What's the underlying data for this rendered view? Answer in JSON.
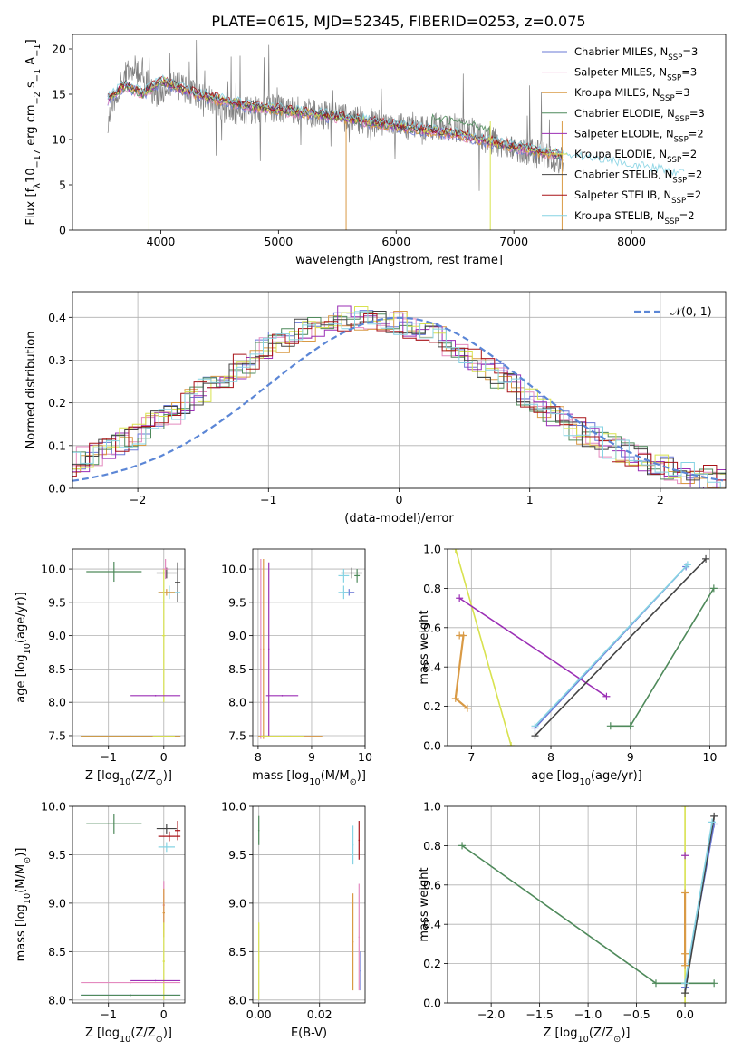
{
  "figure": {
    "title": "PLATE=0615, MJD=52345, FIBERID=0253, z=0.075",
    "legend_entries": [
      {
        "prefix": "Chabrier MILES, N",
        "sub": "SSP",
        "suffix": "=3",
        "color": "#6a78d6"
      },
      {
        "prefix": "Salpeter MILES, N",
        "sub": "SSP",
        "suffix": "=3",
        "color": "#e48abf"
      },
      {
        "prefix": "Kroupa MILES, N",
        "sub": "SSP",
        "suffix": "=3",
        "color": "#d99a45"
      },
      {
        "prefix": "Chabrier ELODIE, N",
        "sub": "SSP",
        "suffix": "=3",
        "color": "#4f8a5b"
      },
      {
        "prefix": "Salpeter ELODIE, N",
        "sub": "SSP",
        "suffix": "=2",
        "color": "#9b2fb5"
      },
      {
        "prefix": "Kroupa ELODIE, N",
        "sub": "SSP",
        "suffix": "=2",
        "color": "#d8e24f"
      },
      {
        "prefix": "Chabrier STELIB, N",
        "sub": "SSP",
        "suffix": "=2",
        "color": "#444444"
      },
      {
        "prefix": "Salpeter STELIB, N",
        "sub": "SSP",
        "suffix": "=2",
        "color": "#a81318"
      },
      {
        "prefix": "Kroupa STELIB, N",
        "sub": "SSP",
        "suffix": "=2",
        "color": "#86d3e3"
      }
    ]
  },
  "chart_data": [
    {
      "id": "spectrum",
      "type": "line",
      "xlabel": "wavelength [Angstrom, rest frame]",
      "ylabel_parts": [
        "Flux [f",
        "λ",
        "10",
        "−17",
        " erg cm",
        "−2",
        " s",
        "−1",
        " A",
        "−1",
        "]"
      ],
      "xlim": [
        3250,
        8800
      ],
      "ylim": [
        0,
        21.6
      ],
      "xticks": [
        4000,
        5000,
        6000,
        7000,
        8000
      ],
      "yticks": [
        0,
        5,
        10,
        15,
        20
      ],
      "data_color": "#808080",
      "data_anchors": [
        [
          3550,
          12
        ],
        [
          3650,
          16
        ],
        [
          3750,
          18
        ],
        [
          3850,
          17
        ],
        [
          3950,
          15
        ],
        [
          4100,
          16
        ],
        [
          4300,
          15
        ],
        [
          4600,
          13
        ],
        [
          5000,
          13.5
        ],
        [
          5500,
          12.5
        ],
        [
          6000,
          11.5
        ],
        [
          6500,
          11.3
        ],
        [
          7000,
          9
        ],
        [
          7500,
          7.5
        ],
        [
          8000,
          7
        ],
        [
          8400,
          6
        ]
      ],
      "model_anchors": [
        [
          3550,
          14.5
        ],
        [
          3700,
          16
        ],
        [
          3850,
          15
        ],
        [
          4000,
          16.5
        ],
        [
          4300,
          15
        ],
        [
          4700,
          13.8
        ],
        [
          5000,
          13.3
        ],
        [
          5500,
          12.5
        ],
        [
          6000,
          11.5
        ],
        [
          6500,
          10.6
        ],
        [
          7000,
          9.2
        ],
        [
          7500,
          8
        ],
        [
          8000,
          7
        ],
        [
          8450,
          6
        ]
      ]
    },
    {
      "id": "residuals",
      "type": "histogram",
      "xlabel": "(data-model)/error",
      "ylabel": "Normed distribution",
      "xlim": [
        -2.5,
        2.5
      ],
      "ylim": [
        0,
        0.46
      ],
      "xticks": [
        -2,
        -1,
        0,
        1,
        2
      ],
      "yticks": [
        0.0,
        0.1,
        0.2,
        0.3,
        0.4
      ],
      "legend": "𝒩(0, 1)",
      "curve_color": "#5b86d6"
    },
    {
      "id": "age-vs-z",
      "type": "errorbar",
      "xlabel_parts": [
        "Z [log",
        "10",
        "(Z/Z",
        "⊙",
        ")]"
      ],
      "ylabel_parts": [
        "age  [log",
        "10",
        "(age/yr)]"
      ],
      "xlim": [
        -1.65,
        0.38
      ],
      "ylim": [
        7.35,
        10.3
      ],
      "xticks": [
        -1,
        0
      ],
      "yticks": [
        7.5,
        8.0,
        8.5,
        9.0,
        9.5,
        10.0
      ],
      "points": [
        {
          "x": -0.9,
          "y": 9.96,
          "xerr": 0.5,
          "yerr": 0.15,
          "s": 3
        },
        {
          "x": 0.05,
          "y": 9.94,
          "xerr": 0.18,
          "yerr": 0.08,
          "s": 6
        },
        {
          "x": 0.25,
          "y": 9.8,
          "xerr": 0.05,
          "yerr": 0.3,
          "s": 6
        },
        {
          "x": 0.1,
          "y": 9.65,
          "xerr": 0.2,
          "yerr": 0.1,
          "s": 8
        },
        {
          "x": 0.05,
          "y": 9.65,
          "xerr": 0.15,
          "yerr": 0.05,
          "s": 2
        },
        {
          "x": 0.03,
          "y": 10.0,
          "xerr": 0.05,
          "yerr": 0.15,
          "s": 1
        },
        {
          "x": 0.0,
          "y": 9.0,
          "xerr": 0.03,
          "yerr": 1.0,
          "s": 5
        },
        {
          "x": -0.15,
          "y": 8.1,
          "xerr": 0.45,
          "yerr": 0.0,
          "s": 4
        },
        {
          "x": -0.6,
          "y": 7.49,
          "xerr": 0.9,
          "yerr": 0.0,
          "s": 3
        },
        {
          "x": -0.6,
          "y": 7.49,
          "xerr": 0.9,
          "yerr": 0.0,
          "s": 2
        },
        {
          "x": 0.0,
          "y": 7.49,
          "xerr": 0.2,
          "yerr": 0.0,
          "s": 5
        }
      ]
    },
    {
      "id": "age-vs-mass",
      "type": "errorbar",
      "xlabel_parts": [
        "mass [log",
        "10",
        "(M/M",
        "⊙",
        ")]"
      ],
      "xlim": [
        7.9,
        10.0
      ],
      "ylim": [
        7.35,
        10.3
      ],
      "xticks": [
        8,
        9,
        10
      ],
      "yticks": [
        7.5,
        8.0,
        8.5,
        9.0,
        9.5,
        10.0
      ],
      "points": [
        {
          "x": 9.75,
          "y": 9.94,
          "xerr": 0.2,
          "yerr": 0.08,
          "s": 6
        },
        {
          "x": 9.6,
          "y": 9.9,
          "xerr": 0.1,
          "yerr": 0.1,
          "s": 8
        },
        {
          "x": 9.7,
          "y": 9.65,
          "xerr": 0.1,
          "yerr": 0.05,
          "s": 0
        },
        {
          "x": 9.6,
          "y": 9.65,
          "xerr": 0.1,
          "yerr": 0.1,
          "s": 8
        },
        {
          "x": 9.85,
          "y": 9.9,
          "xerr": 0.05,
          "yerr": 0.1,
          "s": 3
        },
        {
          "x": 8.05,
          "y": 8.8,
          "xerr": 0.0,
          "yerr": 1.35,
          "s": 1
        },
        {
          "x": 8.1,
          "y": 8.8,
          "xerr": 0.0,
          "yerr": 1.35,
          "s": 2
        },
        {
          "x": 8.2,
          "y": 8.8,
          "xerr": 0.0,
          "yerr": 1.3,
          "s": 4
        },
        {
          "x": 8.45,
          "y": 8.1,
          "xerr": 0.3,
          "yerr": 0.0,
          "s": 4
        },
        {
          "x": 8.6,
          "y": 7.49,
          "xerr": 0.6,
          "yerr": 0.0,
          "s": 2
        },
        {
          "x": 8.45,
          "y": 7.49,
          "xerr": 0.4,
          "yerr": 0.0,
          "s": 5
        }
      ]
    },
    {
      "id": "weight-vs-age",
      "type": "line",
      "xlabel_parts": [
        "age  [log",
        "10",
        "(age/yr)]"
      ],
      "ylabel": "mass weight",
      "xlim": [
        6.7,
        10.2
      ],
      "ylim": [
        0,
        1.0
      ],
      "xticks": [
        7,
        8,
        9,
        10
      ],
      "yticks": [
        0.0,
        0.2,
        0.4,
        0.6,
        0.8,
        1.0
      ],
      "series": [
        {
          "s": 5,
          "pts": [
            [
              6.8,
              1.0
            ],
            [
              7.5,
              0.0
            ]
          ]
        },
        {
          "s": 4,
          "pts": [
            [
              6.85,
              0.75
            ],
            [
              8.7,
              0.25
            ]
          ]
        },
        {
          "s": 2,
          "pts": [
            [
              6.85,
              0.56
            ],
            [
              6.9,
              0.56
            ],
            [
              6.8,
              0.24
            ],
            [
              6.95,
              0.19
            ]
          ]
        },
        {
          "s": 0,
          "pts": [
            [
              7.8,
              0.09
            ],
            [
              9.7,
              0.91
            ]
          ]
        },
        {
          "s": 8,
          "pts": [
            [
              7.8,
              0.1
            ],
            [
              9.72,
              0.92
            ]
          ]
        },
        {
          "s": 6,
          "pts": [
            [
              7.8,
              0.05
            ],
            [
              9.95,
              0.95
            ]
          ]
        },
        {
          "s": 3,
          "pts": [
            [
              8.75,
              0.1
            ],
            [
              9.0,
              0.1
            ],
            [
              10.05,
              0.8
            ]
          ]
        }
      ]
    },
    {
      "id": "mass-vs-z",
      "type": "errorbar",
      "xlabel_parts": [
        "Z [log",
        "10",
        "(Z/Z",
        "⊙",
        ")]"
      ],
      "ylabel_parts": [
        "mass [log",
        "10",
        "(M/M",
        "⊙",
        ")]"
      ],
      "xlim": [
        -1.65,
        0.38
      ],
      "ylim": [
        7.97,
        10.0
      ],
      "xticks": [
        -1,
        0
      ],
      "yticks": [
        8.0,
        8.5,
        9.0,
        9.5,
        10.0
      ],
      "points": [
        {
          "x": -0.9,
          "y": 9.82,
          "xerr": 0.5,
          "yerr": 0.1,
          "s": 3
        },
        {
          "x": 0.05,
          "y": 9.77,
          "xerr": 0.18,
          "yerr": 0.05,
          "s": 6
        },
        {
          "x": 0.25,
          "y": 9.75,
          "xerr": 0.05,
          "yerr": 0.1,
          "s": 7
        },
        {
          "x": 0.1,
          "y": 9.69,
          "xerr": 0.2,
          "yerr": 0.05,
          "s": 7
        },
        {
          "x": 0.05,
          "y": 9.58,
          "xerr": 0.15,
          "yerr": 0.05,
          "s": 8
        },
        {
          "x": 0.0,
          "y": 8.98,
          "xerr": 0.02,
          "yerr": 0.25,
          "s": 1
        },
        {
          "x": 0.0,
          "y": 8.9,
          "xerr": 0.02,
          "yerr": 0.25,
          "s": 2
        },
        {
          "x": 0.0,
          "y": 8.4,
          "xerr": 0.02,
          "yerr": 0.4,
          "s": 5
        },
        {
          "x": -0.15,
          "y": 8.2,
          "xerr": 0.45,
          "yerr": 0.0,
          "s": 4
        },
        {
          "x": -0.6,
          "y": 8.18,
          "xerr": 0.9,
          "yerr": 0.0,
          "s": 1
        },
        {
          "x": -0.6,
          "y": 8.05,
          "xerr": 0.9,
          "yerr": 0.0,
          "s": 0
        },
        {
          "x": -0.6,
          "y": 8.05,
          "xerr": 0.9,
          "yerr": 0.0,
          "s": 3
        }
      ]
    },
    {
      "id": "mass-vs-ebv",
      "type": "errorbar",
      "xlabel": "E(B-V)",
      "xlim": [
        -0.002,
        0.035
      ],
      "ylim": [
        7.97,
        10.0
      ],
      "xticks": [
        0.0,
        0.02
      ],
      "yticks": [
        8.0,
        8.5,
        9.0,
        9.5,
        10.0
      ],
      "points": [
        {
          "x": 0.0,
          "y": 9.75,
          "xerr": 0.0,
          "yerr": 0.15,
          "s": 3
        },
        {
          "x": 0.0,
          "y": 8.4,
          "xerr": 0.0,
          "yerr": 0.4,
          "s": 5
        },
        {
          "x": 0.031,
          "y": 9.6,
          "xerr": 0.0,
          "yerr": 0.2,
          "s": 8
        },
        {
          "x": 0.031,
          "y": 8.6,
          "xerr": 0.0,
          "yerr": 0.5,
          "s": 2
        },
        {
          "x": 0.033,
          "y": 9.65,
          "xerr": 0.0,
          "yerr": 0.2,
          "s": 7
        },
        {
          "x": 0.033,
          "y": 8.65,
          "xerr": 0.0,
          "yerr": 0.55,
          "s": 1
        },
        {
          "x": 0.0335,
          "y": 8.3,
          "xerr": 0.0,
          "yerr": 0.2,
          "s": 0
        }
      ]
    },
    {
      "id": "weight-vs-z",
      "type": "line",
      "xlabel_parts": [
        "Z [log",
        "10",
        "(Z/Z",
        "⊙",
        ")]"
      ],
      "ylabel": "mass weight",
      "xlim": [
        -2.45,
        0.42
      ],
      "ylim": [
        0,
        1.0
      ],
      "xticks": [
        -2.0,
        -1.5,
        -1.0,
        -0.5,
        0.0
      ],
      "yticks": [
        0.0,
        0.2,
        0.4,
        0.6,
        0.8,
        1.0
      ],
      "series": [
        {
          "s": 5,
          "pts": [
            [
              0.0,
              0.0
            ],
            [
              0.0,
              1.0
            ]
          ]
        },
        {
          "s": 3,
          "pts": [
            [
              -2.3,
              0.8
            ],
            [
              -0.3,
              0.1
            ],
            [
              0.3,
              0.1
            ]
          ]
        },
        {
          "s": 0,
          "pts": [
            [
              0.0,
              0.08
            ],
            [
              0.3,
              0.91
            ]
          ]
        },
        {
          "s": 6,
          "pts": [
            [
              0.0,
              0.05
            ],
            [
              0.3,
              0.95
            ]
          ]
        },
        {
          "s": 8,
          "pts": [
            [
              0.0,
              0.1
            ],
            [
              0.28,
              0.92
            ]
          ]
        },
        {
          "s": 4,
          "pts": [
            [
              0.0,
              0.75
            ]
          ]
        },
        {
          "s": 2,
          "pts": [
            [
              0.0,
              0.56
            ],
            [
              0.0,
              0.25
            ],
            [
              0.0,
              0.19
            ]
          ]
        }
      ]
    }
  ]
}
